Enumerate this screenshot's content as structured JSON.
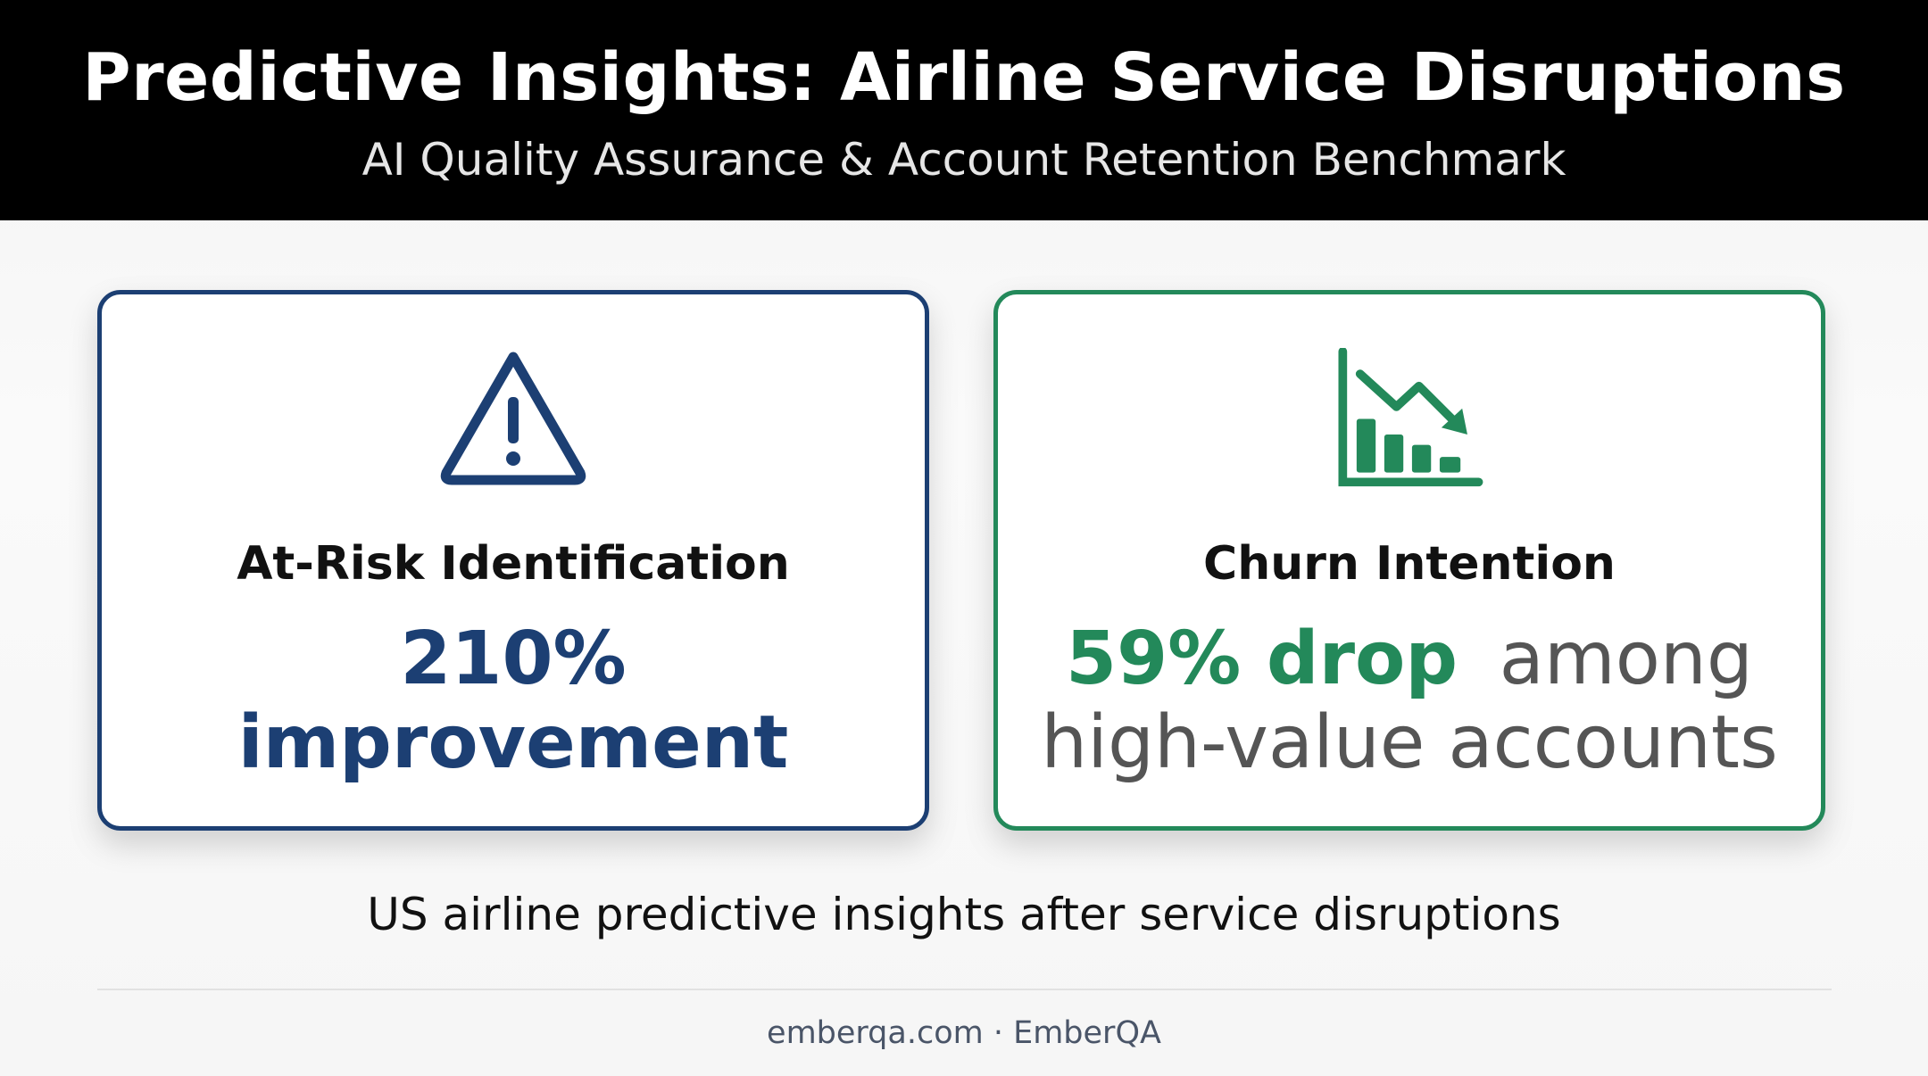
{
  "header": {
    "title": "Predictive Insights: Airline Service Disruptions",
    "subtitle": "AI Quality Assurance & Account Retention Benchmark"
  },
  "cards": [
    {
      "title": "At-Risk Identification",
      "metric": "210%",
      "text": "improvement"
    },
    {
      "title": "Churn Intention",
      "metric": "59% drop",
      "text": "among high-value accounts"
    }
  ],
  "caption": "US airline predictive insights after service disruptions",
  "footer": "emberqa.com · EmberQA"
}
